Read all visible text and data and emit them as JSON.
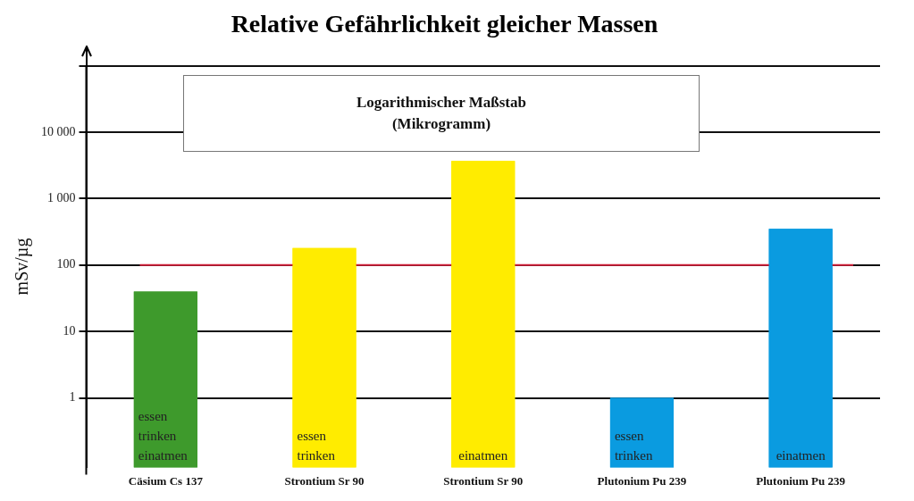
{
  "chart_data": {
    "type": "bar",
    "title": "Relative Gefährlichkeit gleicher Massen",
    "ylabel": "mSv/µg",
    "categories": [
      "Cäsium Cs 137",
      "Strontium Sr 90",
      "Strontium Sr 90",
      "Plutonium Pu 239",
      "Plutonium Pu 239"
    ],
    "values": [
      40,
      180,
      3700,
      1,
      350
    ],
    "colors": [
      "#3e9a2c",
      "#ffec00",
      "#ffec00",
      "#0a9be0",
      "#0a9be0"
    ],
    "value_labels": [
      "essen\ntrinken\neinatmen",
      "essen\ntrinken",
      "einatmen",
      "essen\ntrinken",
      "einatmen"
    ],
    "log": "y",
    "ylim": [
      0.09,
      100000
    ],
    "yticks": [
      1,
      10,
      100,
      {
        "value": 1000,
        "label": "1 000"
      },
      {
        "value": 10000,
        "label": "10 000"
      },
      {
        "value": 100000,
        "label": null
      }
    ],
    "grid": "y",
    "ref_lines": [
      {
        "axis": "y",
        "value": 100,
        "color": "#d0203a"
      }
    ],
    "annotations": [
      "Logarithmischer Maßstab\n(Mikrogramm)"
    ]
  }
}
